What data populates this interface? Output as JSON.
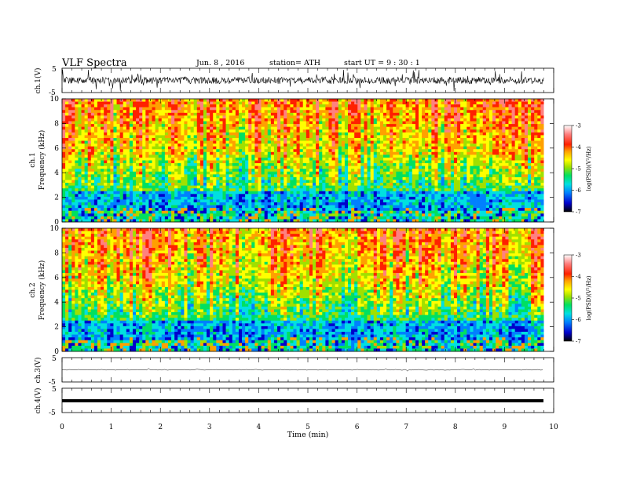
{
  "header": {
    "title": "VLF  Spectra",
    "date": "Jun. 8  , 2016",
    "station": "station= ATH",
    "start": "start  UT  =   9  : 30 : 1"
  },
  "colors": {
    "scale": [
      "#000000",
      "#0000cc",
      "#0080ff",
      "#00e0e0",
      "#00e060",
      "#a0e000",
      "#ffff00",
      "#ffa000",
      "#ff2000",
      "#ff8080",
      "#ffffff"
    ]
  },
  "chart_data": [
    {
      "type": "line",
      "id": "ch1",
      "ylabel": "ch.1(V)",
      "yticks": [
        "5",
        "-5"
      ],
      "ylim": [
        -5,
        5
      ],
      "description_series": "dense noisy waveform around 0 V with spikes to about ±4 V"
    },
    {
      "type": "heatmap",
      "id": "ch1-spectrogram",
      "ylabel": "Frequency  (kHz)",
      "channel_label": "ch.1",
      "yticks": [
        "0",
        "2",
        "4",
        "6",
        "8",
        "10"
      ],
      "ylim": [
        0,
        10
      ],
      "colorbar": {
        "label": "log(PSD)(V²/Hz)",
        "ticks": [
          "-3",
          "-4",
          "-5",
          "-6",
          "-7"
        ],
        "range": [
          -7,
          -3
        ]
      }
    },
    {
      "type": "heatmap",
      "id": "ch2-spectrogram",
      "ylabel": "Frequency  (kHz)",
      "channel_label": "ch.2",
      "yticks": [
        "0",
        "2",
        "4",
        "6",
        "8",
        "10"
      ],
      "ylim": [
        0,
        10
      ],
      "colorbar": {
        "label": "log(PSD)(V²/Hz)",
        "ticks": [
          "-3",
          "-4",
          "-5",
          "-6",
          "-7"
        ],
        "range": [
          -7,
          -3
        ]
      }
    },
    {
      "type": "line",
      "id": "ch3",
      "ylabel": "ch.3(V)",
      "yticks": [
        "5",
        "-5"
      ],
      "ylim": [
        -5,
        5
      ]
    },
    {
      "type": "line",
      "id": "ch4",
      "ylabel": "ch.4(V)",
      "yticks": [
        "5",
        "-5"
      ],
      "ylim": [
        -5,
        5
      ]
    }
  ],
  "xaxis": {
    "label": "Time  (min)",
    "ticks": [
      "0",
      "1",
      "2",
      "3",
      "4",
      "5",
      "6",
      "7",
      "8",
      "9",
      "10"
    ],
    "xlim": [
      0,
      10
    ],
    "data_end": 9.8
  }
}
